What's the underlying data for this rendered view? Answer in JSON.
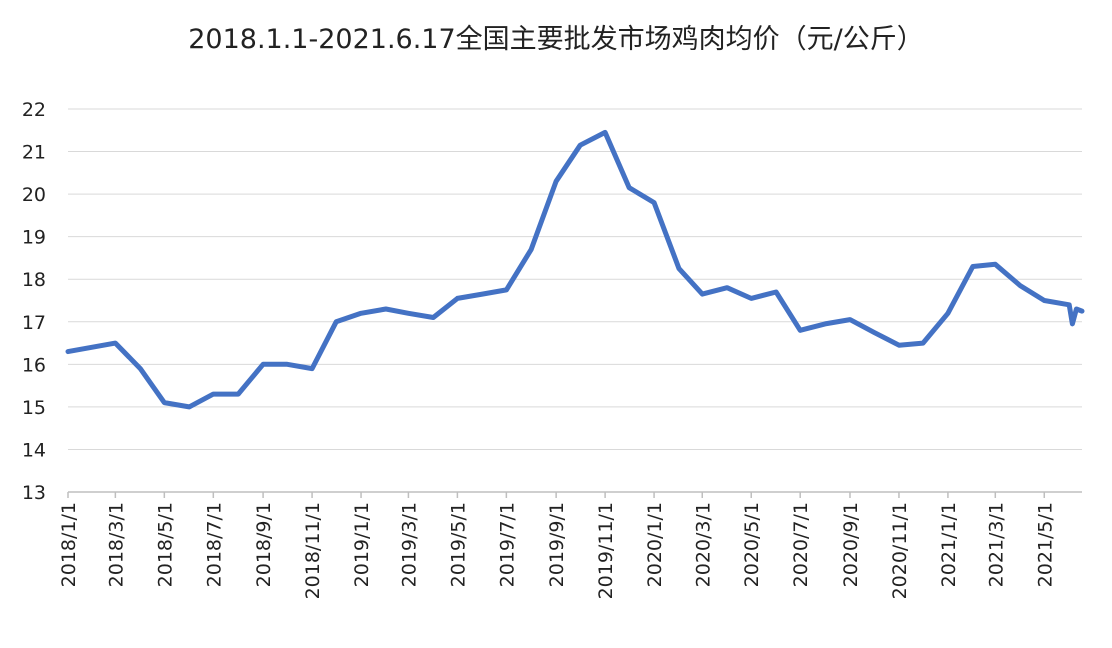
{
  "chart_data": {
    "type": "line",
    "title": "2018.1.1-2021.6.17全国主要批发市场鸡肉均价（元/公斤）",
    "color": "#4472c4",
    "grid": true,
    "x": [
      "2018/1/1",
      "2018/3/1",
      "2018/4/1",
      "2018/5/1",
      "2018/6/1",
      "2018/7/1",
      "2018/8/1",
      "2018/9/1",
      "2018/10/1",
      "2018/11/1",
      "2018/12/1",
      "2019/1/1",
      "2019/2/1",
      "2019/3/1",
      "2019/4/1",
      "2019/5/1",
      "2019/6/1",
      "2019/7/1",
      "2019/8/1",
      "2019/9/1",
      "2019/10/1",
      "2019/11/1",
      "2019/12/1",
      "2020/1/1",
      "2020/2/1",
      "2020/3/1",
      "2020/4/1",
      "2020/5/1",
      "2020/6/1",
      "2020/7/1",
      "2020/8/1",
      "2020/9/1",
      "2020/10/1",
      "2020/11/1",
      "2020/12/1",
      "2021/1/1",
      "2021/2/1",
      "2021/3/1",
      "2021/4/1",
      "2021/5/1",
      "2021/6/1",
      "2021/6/5",
      "2021/6/10",
      "2021/6/17"
    ],
    "values": [
      16.3,
      16.5,
      15.9,
      15.1,
      15.0,
      15.3,
      15.3,
      16.0,
      16.0,
      15.9,
      17.0,
      17.2,
      17.3,
      17.2,
      17.1,
      17.55,
      17.65,
      17.75,
      18.7,
      20.3,
      21.15,
      21.45,
      20.15,
      19.8,
      18.25,
      17.65,
      17.8,
      17.55,
      17.7,
      16.8,
      16.95,
      17.05,
      16.75,
      16.45,
      16.5,
      17.2,
      18.3,
      18.35,
      17.85,
      17.5,
      17.4,
      16.95,
      17.3,
      17.25
    ],
    "xlim": [
      "2018/1/1",
      "2021/6/17"
    ],
    "xticks": [
      "2018/1/1",
      "2018/3/1",
      "2018/5/1",
      "2018/7/1",
      "2018/9/1",
      "2018/11/1",
      "2019/1/1",
      "2019/3/1",
      "2019/5/1",
      "2019/7/1",
      "2019/9/1",
      "2019/11/1",
      "2020/1/1",
      "2020/3/1",
      "2020/5/1",
      "2020/7/1",
      "2020/9/1",
      "2020/11/1",
      "2021/1/1",
      "2021/3/1",
      "2021/5/1"
    ],
    "ylim": [
      13,
      22
    ],
    "yticks": [
      13,
      14,
      15,
      16,
      17,
      18,
      19,
      20,
      21,
      22
    ]
  }
}
